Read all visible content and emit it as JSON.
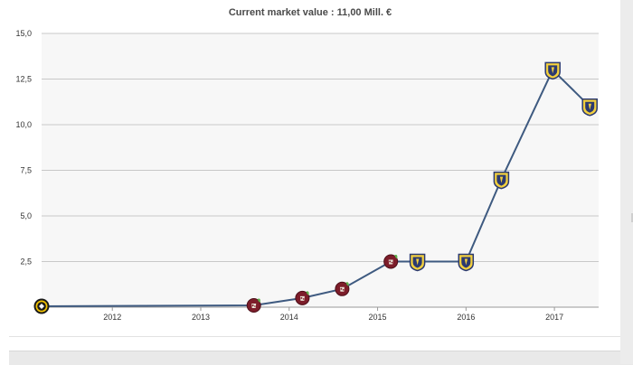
{
  "chart_data": {
    "type": "line",
    "title": "Current market value : 11,00 Mill. €",
    "xlabel": "",
    "ylabel": "",
    "ylim": [
      0,
      15
    ],
    "y_ticks": [
      {
        "value": 0,
        "label": ""
      },
      {
        "value": 2.5,
        "label": "2,5"
      },
      {
        "value": 5,
        "label": "5,0"
      },
      {
        "value": 7.5,
        "label": "7,5"
      },
      {
        "value": 10,
        "label": "10,0"
      },
      {
        "value": 12.5,
        "label": "12,5"
      },
      {
        "value": 15,
        "label": "15,0"
      }
    ],
    "xlim": [
      2011.2,
      2017.5
    ],
    "x_ticks": [
      {
        "value": 2012,
        "label": "2012"
      },
      {
        "value": 2013,
        "label": "2013"
      },
      {
        "value": 2014,
        "label": "2014"
      },
      {
        "value": 2015,
        "label": "2015"
      },
      {
        "value": 2016,
        "label": "2016"
      },
      {
        "value": 2017,
        "label": "2017"
      }
    ],
    "grid": true,
    "line_color": "#3e5a80",
    "plot_background": "#f7f7f7",
    "series": [
      {
        "points": [
          {
            "x": 2011.2,
            "y": 0.05,
            "club": "club-a",
            "icon": "black-yellow-badge-icon"
          },
          {
            "x": 2013.6,
            "y": 0.1,
            "club": "club-b",
            "icon": "maroon-badge-icon"
          },
          {
            "x": 2014.15,
            "y": 0.5,
            "club": "club-b",
            "icon": "maroon-badge-icon"
          },
          {
            "x": 2014.6,
            "y": 1.0,
            "club": "club-b",
            "icon": "maroon-badge-icon"
          },
          {
            "x": 2015.15,
            "y": 2.5,
            "club": "club-b",
            "icon": "maroon-badge-icon"
          },
          {
            "x": 2015.45,
            "y": 2.5,
            "club": "club-c",
            "icon": "yellow-blue-shield-icon"
          },
          {
            "x": 2016.0,
            "y": 2.5,
            "club": "club-c",
            "icon": "yellow-blue-shield-icon"
          },
          {
            "x": 2016.4,
            "y": 7.0,
            "club": "club-c",
            "icon": "yellow-blue-shield-icon"
          },
          {
            "x": 2016.98,
            "y": 13.0,
            "club": "club-c",
            "icon": "yellow-blue-shield-icon"
          },
          {
            "x": 2017.4,
            "y": 11.0,
            "club": "club-c",
            "icon": "yellow-blue-shield-icon"
          }
        ]
      }
    ]
  }
}
